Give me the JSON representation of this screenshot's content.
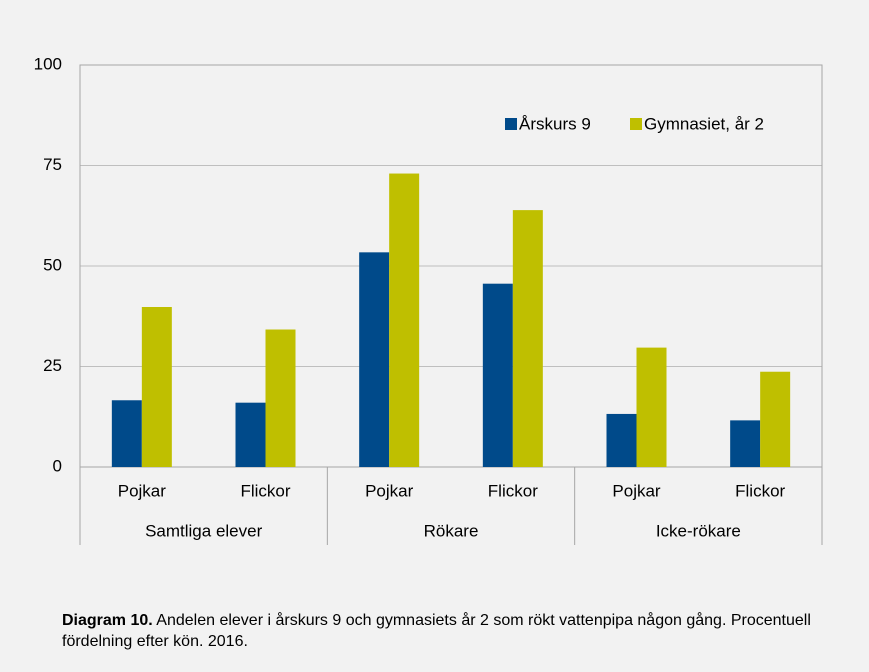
{
  "chart_data": {
    "type": "bar",
    "categories": [
      "Pojkar",
      "Flickor",
      "Pojkar",
      "Flickor",
      "Pojkar",
      "Flickor"
    ],
    "category_groups": [
      "Samtliga elever",
      "Rökare",
      "Icke-rökare"
    ],
    "series": [
      {
        "name": "Årskurs 9",
        "color": "#004a8a",
        "values": [
          16.6,
          16,
          53.4,
          45.6,
          13.2,
          11.6
        ]
      },
      {
        "name": "Gymnasiet, år 2",
        "color": "#bfbf00",
        "values": [
          39.8,
          34.2,
          73,
          63.9,
          29.7,
          23.7
        ]
      }
    ],
    "ylim": [
      0,
      100
    ],
    "yticks": [
      0,
      25,
      50,
      75,
      100
    ],
    "grid": true,
    "legend": "top-right",
    "caption": {
      "label": "Diagram 10.",
      "text": "Andelen elever i årskurs 9 och gymnasiets år 2 som rökt vattenpipa någon gång. Procentuell fördelning efter kön. 2016."
    }
  }
}
